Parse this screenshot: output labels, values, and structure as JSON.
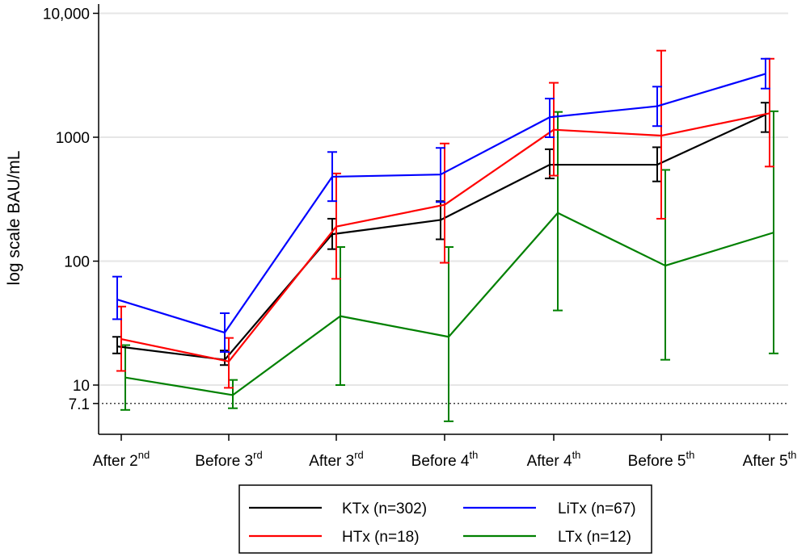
{
  "chart_data": {
    "type": "line",
    "title": "",
    "xlabel": "",
    "ylabel": "log scale BAU/mL",
    "yscale": "log",
    "ylim": [
      3.5,
      10000
    ],
    "y_ticks": [
      {
        "value": 10000,
        "label": "10,000"
      },
      {
        "value": 1000,
        "label": "1000"
      },
      {
        "value": 100,
        "label": "100"
      },
      {
        "value": 10,
        "label": "10"
      },
      {
        "value": 7.1,
        "label": "7.1"
      }
    ],
    "gridlines_at": [
      10000,
      1000,
      100,
      10
    ],
    "reference_line": {
      "value": 7.1,
      "style": "dotted"
    },
    "categories": [
      {
        "main": "After 2",
        "sup": "nd"
      },
      {
        "main": "Before 3",
        "sup": "rd"
      },
      {
        "main": "After 3",
        "sup": "rd"
      },
      {
        "main": "Before 4",
        "sup": "th"
      },
      {
        "main": "After 4",
        "sup": "th"
      },
      {
        "main": "Before 5",
        "sup": "th"
      },
      {
        "main": "After 5",
        "sup": "th"
      }
    ],
    "series": [
      {
        "name": "KTx (n=302)",
        "color": "#000000",
        "offset": -1,
        "values": [
          20.5,
          16,
          165,
          215,
          600,
          600,
          1520
        ],
        "lower": [
          18,
          14.5,
          125,
          150,
          465,
          440,
          1100
        ],
        "upper": [
          24.5,
          19,
          220,
          305,
          800,
          830,
          1900
        ]
      },
      {
        "name": "HTx (n=18)",
        "color": "#ff0000",
        "offset": 0,
        "values": [
          23.5,
          15.5,
          190,
          285,
          1150,
          1030,
          1560
        ],
        "lower": [
          13,
          9.5,
          72,
          97,
          490,
          220,
          580
        ],
        "upper": [
          43,
          24,
          510,
          890,
          2750,
          5000,
          4300
        ]
      },
      {
        "name": "LiTx (n=67)",
        "color": "#0000ff",
        "offset": -1,
        "values": [
          49,
          26.5,
          480,
          500,
          1450,
          1780,
          3250
        ],
        "lower": [
          34,
          18.5,
          305,
          300,
          1000,
          1230,
          2470
        ],
        "upper": [
          75,
          38,
          760,
          820,
          2050,
          2560,
          4300
        ]
      },
      {
        "name": "LTx (n=12)",
        "color": "#008000",
        "offset": 1,
        "values": [
          11.5,
          8.3,
          36,
          24.5,
          245,
          92,
          170
        ],
        "lower": [
          6.3,
          6.5,
          10,
          5.1,
          40,
          16,
          18
        ],
        "upper": [
          21,
          11,
          130,
          130,
          1600,
          545,
          1620
        ]
      }
    ],
    "legend": {
      "position": "bottom",
      "items": [
        "KTx (n=302)",
        "LiTx (n=67)",
        "HTx (n=18)",
        "LTx (n=12)"
      ]
    }
  }
}
